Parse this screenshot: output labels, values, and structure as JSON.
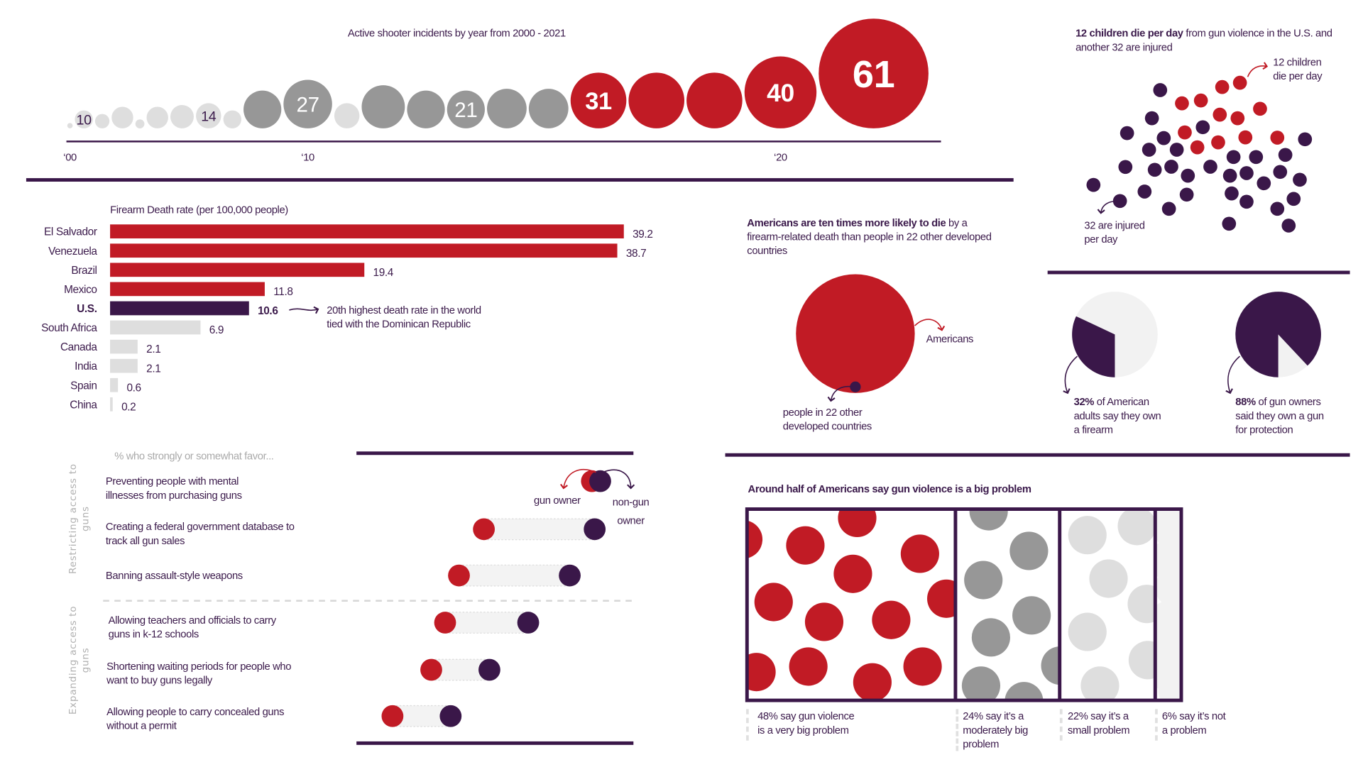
{
  "colors": {
    "red": "#c11b25",
    "purple": "#3a1749",
    "mid_grey": "#979797",
    "light_grey": "#dedede",
    "pale_grey": "#f2f2f2",
    "text": "#3b1a4b"
  },
  "chart_data": [
    {
      "type": "bubble",
      "title": "Active shooter incidents by year from 2000 - 2021",
      "x": [
        2000,
        2001,
        2002,
        2003,
        2004,
        2005,
        2006,
        2007,
        2008,
        2009,
        2010,
        2011,
        2012,
        2013,
        2014,
        2015,
        2016,
        2017,
        2018,
        2019,
        2020,
        2021
      ],
      "values": [
        3,
        10,
        8,
        12,
        5,
        12,
        13,
        14,
        10,
        21,
        27,
        14,
        24,
        21,
        21,
        22,
        22,
        31,
        31,
        31,
        40,
        61
      ],
      "labels": [
        "",
        "10",
        "",
        "",
        "",
        "",
        "",
        "14",
        "",
        "",
        "27",
        "",
        "",
        "",
        "21",
        "",
        "",
        "31",
        "",
        "",
        "40",
        "61"
      ],
      "tones": [
        "light",
        "light",
        "light",
        "light",
        "light",
        "light",
        "light",
        "light",
        "light",
        "mid",
        "mid",
        "light",
        "mid",
        "mid",
        "mid",
        "mid",
        "mid",
        "red",
        "red",
        "red",
        "red",
        "red"
      ],
      "tick_years": [
        2000,
        2010,
        2020
      ],
      "tick_labels": [
        "‘00",
        "‘10",
        "‘20"
      ]
    },
    {
      "type": "bar",
      "title": "Firearm Death rate (per 100,000 people)",
      "categories": [
        "El Salvador",
        "Venezuela",
        "Brazil",
        "Mexico",
        "U.S.",
        "South Africa",
        "Canada",
        "India",
        "Spain",
        "China"
      ],
      "values": [
        39.2,
        38.7,
        19.4,
        11.8,
        10.6,
        6.9,
        2.1,
        2.1,
        0.6,
        0.2
      ],
      "value_labels": [
        "39.2",
        "38.7",
        "19.4",
        "11.8",
        "10.6",
        "6.9",
        "2.1",
        "2.1",
        "0.6",
        "0.2"
      ],
      "tones": [
        "red",
        "red",
        "red",
        "red",
        "purple",
        "light",
        "light",
        "light",
        "light",
        "light"
      ],
      "highlight": "U.S.",
      "annotation": "20th highest death rate in the world\ntied with the Dominican Republic"
    },
    {
      "type": "unit",
      "heading_bold": "12 children die per day",
      "heading_rest": " from gun violence in the U.S. and another 32 are injured",
      "deaths_per_day": 12,
      "injured_per_day": 32,
      "label_deaths": "12 children\ndie per day",
      "label_injured": "32 are injured\nper day"
    },
    {
      "type": "area",
      "heading_bold": "Americans are ten times more likely to die",
      "heading_rest": " by a firearm-related death than people in 22 other developed countries",
      "ratio": 10,
      "label_large": "Americans",
      "label_small": "people in 22 other\ndeveloped countries"
    },
    {
      "type": "pie",
      "items": [
        {
          "value": 32,
          "bold": "32%",
          "text": " of American\nadults say they own\na firearm"
        },
        {
          "value": 88,
          "bold": "88%",
          "text": " of gun owners\nsaid they own a gun\nfor protection"
        }
      ]
    },
    {
      "type": "dot",
      "subtitle": "% who strongly or somewhat favor...",
      "xlim": [
        0,
        100
      ],
      "groups": [
        "Restricting access to\nguns",
        "Expanding access to\nguns"
      ],
      "legend": {
        "gun_owner": "gun owner",
        "non_gun_owner": "non-gun\nowner"
      },
      "items": [
        {
          "label": "Preventing people with mental\nillnesses from purchasing guns",
          "gun_owner": 85,
          "non_gun_owner": 88,
          "group": 0
        },
        {
          "label": "Creating a federal government database to\ntrack all gun sales",
          "gun_owner": 46,
          "non_gun_owner": 86,
          "group": 0
        },
        {
          "label": "Banning assault-style weapons",
          "gun_owner": 37,
          "non_gun_owner": 77,
          "group": 0
        },
        {
          "label": "Allowing teachers and officials to carry\nguns in k-12 schools",
          "gun_owner": 32,
          "non_gun_owner": 62,
          "group": 1
        },
        {
          "label": "Shortening waiting periods for people who\nwant to buy guns legally",
          "gun_owner": 27,
          "non_gun_owner": 48,
          "group": 1
        },
        {
          "label": "Allowing people to carry concealed guns\nwithout a permit",
          "gun_owner": 13,
          "non_gun_owner": 34,
          "group": 1
        }
      ]
    },
    {
      "type": "bar",
      "title": "Around half of Americans say gun violence is a big problem",
      "categories": [
        "very big problem",
        "moderately big problem",
        "small problem",
        "not a problem"
      ],
      "values": [
        48,
        24,
        22,
        6
      ],
      "tones": [
        "red",
        "mid",
        "light",
        "pale"
      ],
      "captions": [
        "48% say gun violence\nis a very big problem",
        "24% say it’s a\nmoderately big\nproblem",
        "22% say it’s a\nsmall problem",
        "6% say it’s not\na problem"
      ]
    }
  ]
}
